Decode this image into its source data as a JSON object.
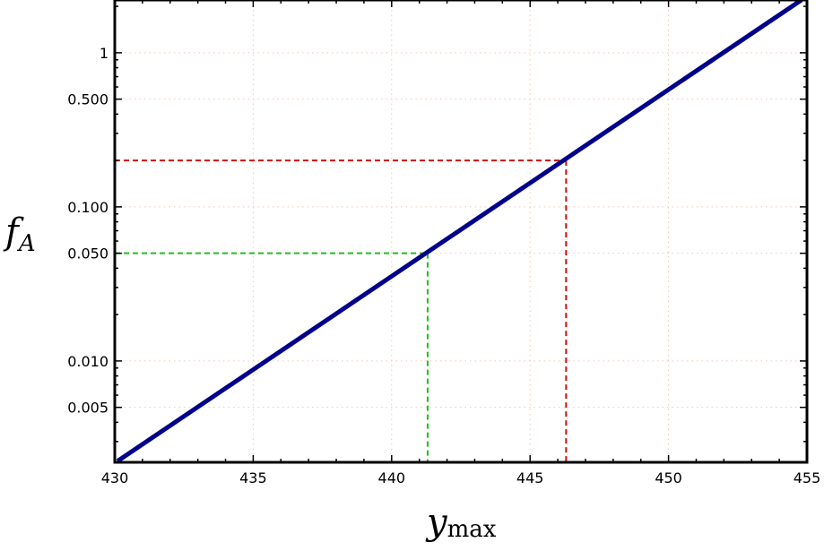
{
  "chart_data": {
    "type": "line",
    "title": "",
    "xlabel": "y",
    "xlabel_subscript": "max",
    "ylabel": "f",
    "ylabel_subscript": "A",
    "xlim": [
      430,
      455
    ],
    "ylim": [
      0.0022,
      2.2
    ],
    "yscale": "log",
    "grid": true,
    "xticks": [
      430,
      435,
      440,
      445,
      450,
      455
    ],
    "xtick_labels": [
      "430",
      "435",
      "440",
      "445",
      "450",
      "455"
    ],
    "yticks": [
      0.005,
      0.01,
      0.05,
      0.1,
      0.5,
      1
    ],
    "ytick_labels": [
      "0.005",
      "0.010",
      "0.050",
      "0.100",
      "0.500",
      "1"
    ],
    "series": [
      {
        "x": [
          430.1,
          454.8
        ],
        "y": [
          0.00224,
          2.2
        ],
        "color": "#00008b"
      }
    ],
    "reference_lines": [
      {
        "x": 441.3,
        "y": 0.05,
        "color": "#1fbf1f"
      },
      {
        "x": 446.3,
        "y": 0.2,
        "color": "#cc1111"
      }
    ]
  }
}
